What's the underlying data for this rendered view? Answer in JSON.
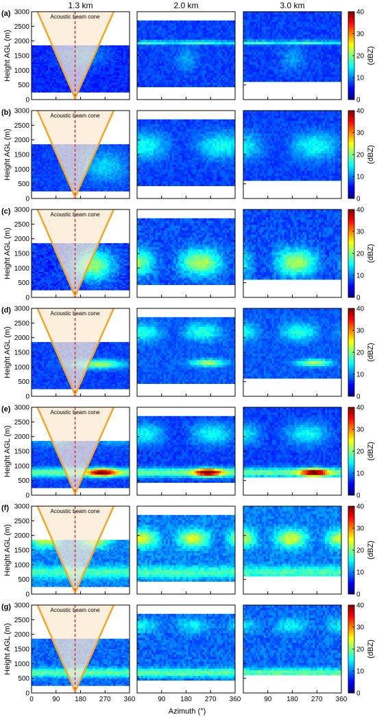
{
  "chart_data": {
    "type": "heatmap",
    "columns": [
      "1.3 km",
      "2.0 km",
      "3.0 km"
    ],
    "rows": [
      {
        "label": "(a)",
        "cone_label": "Acoustic beam cone"
      },
      {
        "label": "(b)",
        "cone_label": "Acoustic beam cone"
      },
      {
        "label": "(c)",
        "cone_label": "Acoustic beam cone"
      },
      {
        "label": "(d)",
        "cone_label": "Acoustic beam cone"
      },
      {
        "label": "(e)",
        "cone_label": "Acoustic beam cone"
      },
      {
        "label": "(f)",
        "cone_label": "Acoustic beam cone"
      },
      {
        "label": "(g)",
        "cone_label": "Acoustic beam cone"
      }
    ],
    "xlabel": "Azimuth (°)",
    "ylabel": "Height AGL (m)",
    "colorbar_label": "(dBZ)",
    "xlim": [
      0,
      360
    ],
    "ylim": [
      0,
      3000
    ],
    "clim": [
      0,
      40
    ],
    "xticks_first_col": [
      0,
      90,
      180,
      270,
      360
    ],
    "xticks_other_cols": [
      90,
      180,
      270,
      360
    ],
    "yticks": [
      0,
      500,
      1000,
      1500,
      2000,
      2500,
      3000
    ],
    "cticks": [
      0,
      10,
      20,
      30,
      40
    ],
    "dashed_line_azimuth": 160,
    "colormap": [
      "#00008f",
      "#0000ff",
      "#0080ff",
      "#00ffff",
      "#80ff80",
      "#ffff00",
      "#ff8000",
      "#ff0000",
      "#800000"
    ],
    "cone_color": "#f5a623",
    "cone_fill": "#fbe9d3",
    "dashed_color": "#ff0000"
  }
}
